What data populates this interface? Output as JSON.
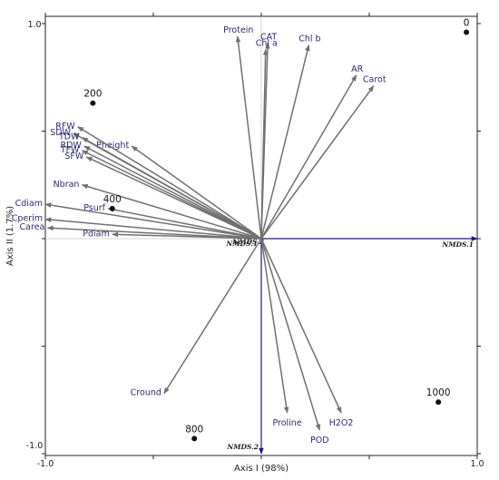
{
  "chart_data": {
    "type": "scatter",
    "subtype": "ordination-biplot",
    "title": "",
    "xlabel": "Axis I (98%)",
    "ylabel": "Axis II (1.7%)",
    "xlim": [
      -1.0,
      1.0
    ],
    "ylim": [
      -1.0,
      1.0
    ],
    "x_ticks": [
      {
        "value": -1.0,
        "label": "-1.0"
      },
      {
        "value": 1.0,
        "label": "1.0"
      }
    ],
    "y_ticks": [
      {
        "value": 1.0,
        "label": "1.0"
      },
      {
        "value": -1.0,
        "label": "-1.0"
      }
    ],
    "grid": false,
    "ordination_axes": [
      {
        "label": "NMDS.1",
        "x": 1.0,
        "y": 0.0
      },
      {
        "label": "NMDS.2",
        "x": 0.0,
        "y": -1.0
      }
    ],
    "vectors_color": "#707070",
    "ordination_axes_color": "#1a1a7a",
    "vectors": [
      {
        "label": "Protein",
        "x": -0.11,
        "y": 0.94
      },
      {
        "label": "CAT",
        "x": 0.03,
        "y": 0.91
      },
      {
        "label": "Chl a",
        "x": 0.02,
        "y": 0.88
      },
      {
        "label": "Chl b",
        "x": 0.22,
        "y": 0.9
      },
      {
        "label": "AR",
        "x": 0.44,
        "y": 0.76
      },
      {
        "label": "Carot",
        "x": 0.52,
        "y": 0.71
      },
      {
        "label": "Pheight",
        "x": -0.6,
        "y": 0.43
      },
      {
        "label": "RFW",
        "x": -0.85,
        "y": 0.52
      },
      {
        "label": "SDW",
        "x": -0.87,
        "y": 0.49
      },
      {
        "label": "TDW",
        "x": -0.83,
        "y": 0.47
      },
      {
        "label": "RDW",
        "x": -0.82,
        "y": 0.43
      },
      {
        "label": "TFW",
        "x": -0.83,
        "y": 0.41
      },
      {
        "label": "SFW",
        "x": -0.81,
        "y": 0.38
      },
      {
        "label": "Nbran",
        "x": -0.83,
        "y": 0.25
      },
      {
        "label": "Psurf",
        "x": -0.71,
        "y": 0.14
      },
      {
        "label": "Cdiam",
        "x": -1.0,
        "y": 0.16
      },
      {
        "label": "Cperim",
        "x": -1.0,
        "y": 0.09
      },
      {
        "label": "Carea",
        "x": -0.99,
        "y": 0.05
      },
      {
        "label": "Pdiam",
        "x": -0.69,
        "y": 0.02
      },
      {
        "label": "Cround",
        "x": -0.45,
        "y": -0.72
      },
      {
        "label": "Proline",
        "x": 0.12,
        "y": -0.81
      },
      {
        "label": "POD",
        "x": 0.27,
        "y": -0.89
      },
      {
        "label": "H2O2",
        "x": 0.37,
        "y": -0.81
      }
    ],
    "sites": [
      {
        "label": "0",
        "x": 0.95,
        "y": 0.96
      },
      {
        "label": "200",
        "x": -0.78,
        "y": 0.63
      },
      {
        "label": "400",
        "x": -0.69,
        "y": 0.14
      },
      {
        "label": "800",
        "x": -0.31,
        "y": -0.93
      },
      {
        "label": "1000",
        "x": 0.82,
        "y": -0.76
      }
    ]
  }
}
